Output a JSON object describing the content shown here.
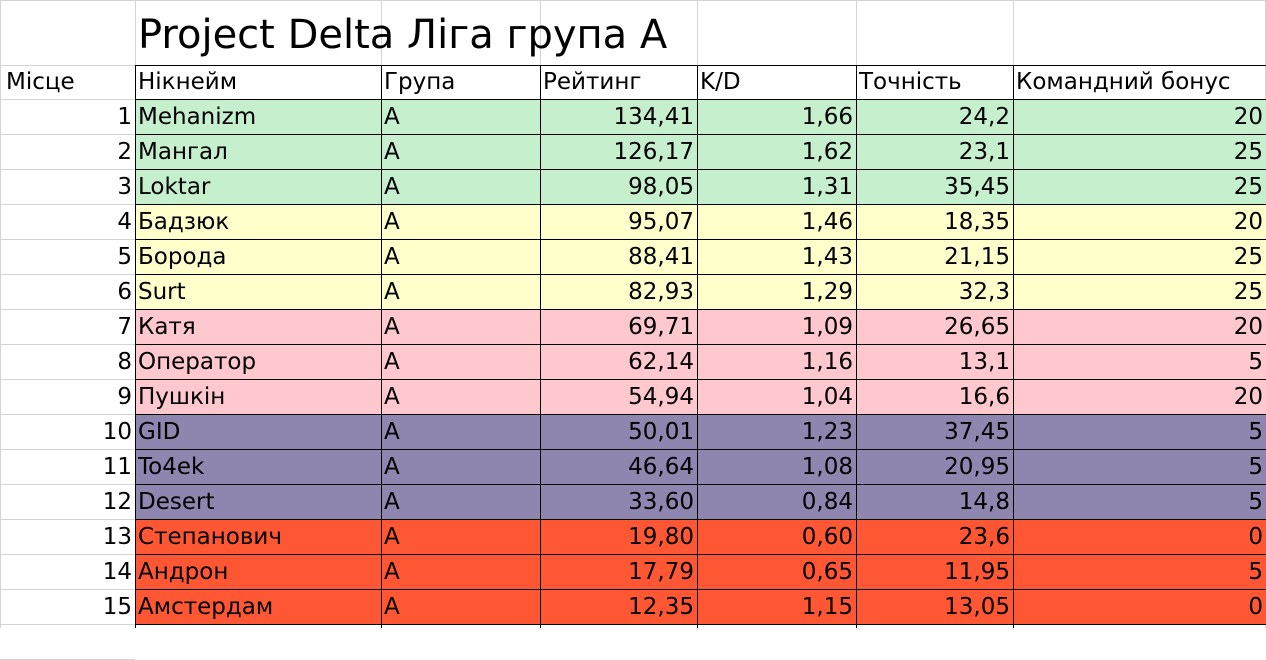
{
  "title": "Project Delta Ліга група А",
  "headers": {
    "place": "Місце",
    "nickname": "Нікнейм",
    "group": "Група",
    "rating": "Рейтинг",
    "kd": "K/D",
    "accuracy": "Точність",
    "team_bonus": "Командний бонус"
  },
  "tier_colors": {
    "green": "#c6efce",
    "yellow": "#ffffcc",
    "pink": "#ffc7ce",
    "purple": "#8e86ae",
    "orange": "#ff5733"
  },
  "rows": [
    {
      "place": "1",
      "nickname": "Mehanizm",
      "group": "A",
      "rating": "134,41",
      "kd": "1,66",
      "accuracy": "24,2",
      "team_bonus": "20",
      "tier": "green"
    },
    {
      "place": "2",
      "nickname": "Мангал",
      "group": "A",
      "rating": "126,17",
      "kd": "1,62",
      "accuracy": "23,1",
      "team_bonus": "25",
      "tier": "green"
    },
    {
      "place": "3",
      "nickname": "Loktar",
      "group": "A",
      "rating": "98,05",
      "kd": "1,31",
      "accuracy": "35,45",
      "team_bonus": "25",
      "tier": "green"
    },
    {
      "place": "4",
      "nickname": "Бадзюк",
      "group": "A",
      "rating": "95,07",
      "kd": "1,46",
      "accuracy": "18,35",
      "team_bonus": "20",
      "tier": "yellow"
    },
    {
      "place": "5",
      "nickname": "Борода",
      "group": "A",
      "rating": "88,41",
      "kd": "1,43",
      "accuracy": "21,15",
      "team_bonus": "25",
      "tier": "yellow"
    },
    {
      "place": "6",
      "nickname": "Surt",
      "group": "A",
      "rating": "82,93",
      "kd": "1,29",
      "accuracy": "32,3",
      "team_bonus": "25",
      "tier": "yellow"
    },
    {
      "place": "7",
      "nickname": "Катя",
      "group": "A",
      "rating": "69,71",
      "kd": "1,09",
      "accuracy": "26,65",
      "team_bonus": "20",
      "tier": "pink"
    },
    {
      "place": "8",
      "nickname": "Оператор",
      "group": "A",
      "rating": "62,14",
      "kd": "1,16",
      "accuracy": "13,1",
      "team_bonus": "5",
      "tier": "pink"
    },
    {
      "place": "9",
      "nickname": "Пушкін",
      "group": "A",
      "rating": "54,94",
      "kd": "1,04",
      "accuracy": "16,6",
      "team_bonus": "20",
      "tier": "pink"
    },
    {
      "place": "10",
      "nickname": "GID",
      "group": "A",
      "rating": "50,01",
      "kd": "1,23",
      "accuracy": "37,45",
      "team_bonus": "5",
      "tier": "purple"
    },
    {
      "place": "11",
      "nickname": "To4ek",
      "group": "A",
      "rating": "46,64",
      "kd": "1,08",
      "accuracy": "20,95",
      "team_bonus": "5",
      "tier": "purple"
    },
    {
      "place": "12",
      "nickname": "Desert",
      "group": "A",
      "rating": "33,60",
      "kd": "0,84",
      "accuracy": "14,8",
      "team_bonus": "5",
      "tier": "purple"
    },
    {
      "place": "13",
      "nickname": "Степанович",
      "group": "A",
      "rating": "19,80",
      "kd": "0,60",
      "accuracy": "23,6",
      "team_bonus": "0",
      "tier": "orange"
    },
    {
      "place": "14",
      "nickname": "Андрон",
      "group": "A",
      "rating": "17,79",
      "kd": "0,65",
      "accuracy": "11,95",
      "team_bonus": "5",
      "tier": "orange"
    },
    {
      "place": "15",
      "nickname": "Амстердам",
      "group": "A",
      "rating": "12,35",
      "kd": "1,15",
      "accuracy": "13,05",
      "team_bonus": "0",
      "tier": "orange"
    }
  ]
}
